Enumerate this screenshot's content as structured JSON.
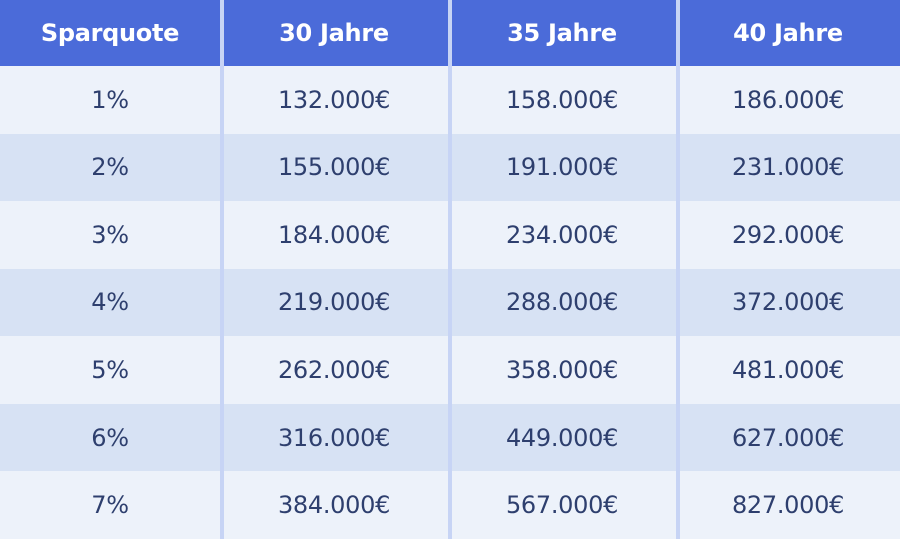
{
  "chart_data": {
    "type": "table",
    "columns": [
      "Sparquote",
      "30 Jahre",
      "35 Jahre",
      "40 Jahre"
    ],
    "rows": [
      [
        "1%",
        "132.000€",
        "158.000€",
        "186.000€"
      ],
      [
        "2%",
        "155.000€",
        "191.000€",
        "231.000€"
      ],
      [
        "3%",
        "184.000€",
        "234.000€",
        "292.000€"
      ],
      [
        "4%",
        "219.000€",
        "288.000€",
        "372.000€"
      ],
      [
        "5%",
        "262.000€",
        "358.000€",
        "481.000€"
      ],
      [
        "6%",
        "316.000€",
        "449.000€",
        "627.000€"
      ],
      [
        "7%",
        "384.000€",
        "567.000€",
        "827.000€"
      ]
    ]
  },
  "colors": {
    "header_bg": "#4b6bd9",
    "header_text": "#ffffff",
    "row_light": "#edf2fa",
    "row_dark": "#d7e2f4",
    "divider": "#c7d4f5",
    "body_text": "#2e3f6e"
  }
}
